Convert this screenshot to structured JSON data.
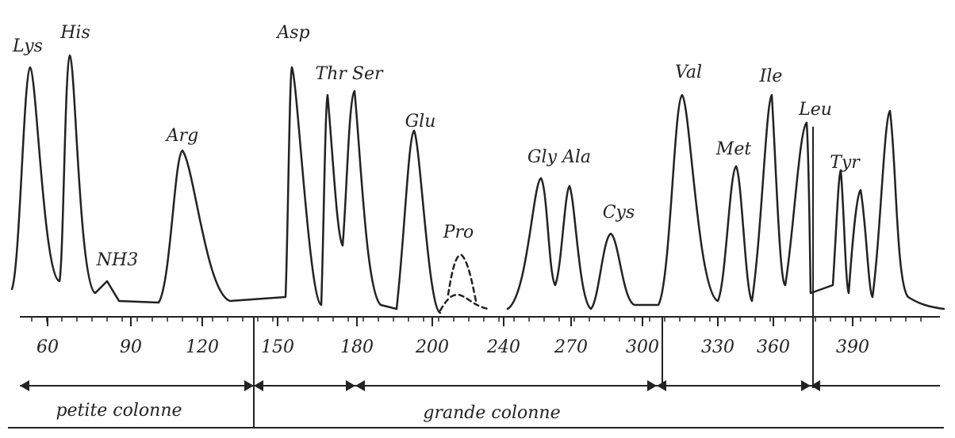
{
  "peaks": [
    {
      "label": "Lys"
    },
    {
      "label": "His"
    },
    {
      "label": "NH3"
    },
    {
      "label": "Arg"
    },
    {
      "label": "Asp"
    },
    {
      "label": "Thr Ser"
    },
    {
      "label": "Glu"
    },
    {
      "label": "Pro"
    },
    {
      "label": "Gly Ala"
    },
    {
      "label": "Cys"
    },
    {
      "label": "Val"
    },
    {
      "label": "Met"
    },
    {
      "label": "Ile"
    },
    {
      "label": "Leu"
    },
    {
      "label": "Tyr"
    }
  ],
  "axis": {
    "ticks": [
      "60",
      "90",
      "120",
      "150",
      "180",
      "200",
      "240",
      "270",
      "300",
      "330",
      "360",
      "390"
    ]
  },
  "sections": [
    "petite colonne",
    "grande colonne"
  ]
}
